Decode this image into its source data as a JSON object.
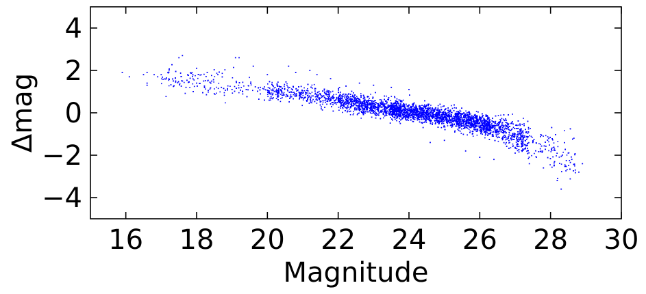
{
  "chart_data": {
    "type": "scatter",
    "title": "",
    "xlabel": "Magnitude",
    "ylabel": "Δmag",
    "xlim": [
      15,
      30
    ],
    "ylim": [
      -5,
      5
    ],
    "xticks": [
      16,
      18,
      20,
      22,
      24,
      26,
      28,
      30
    ],
    "xtick_labels": [
      "16",
      "18",
      "20",
      "22",
      "24",
      "26",
      "28",
      "30"
    ],
    "yticks": [
      4,
      2,
      0,
      -2,
      -4
    ],
    "ytick_labels": [
      "4",
      "2",
      "0",
      "−2",
      "−4"
    ],
    "grid": false,
    "legend": "none",
    "series": [
      {
        "color": "#0000ff",
        "marker": "dot",
        "trend": [
          {
            "x": 16.0,
            "y": 1.9
          },
          {
            "x": 17.0,
            "y": 1.7
          },
          {
            "x": 18.0,
            "y": 1.5
          },
          {
            "x": 19.0,
            "y": 1.3
          },
          {
            "x": 20.0,
            "y": 1.1
          },
          {
            "x": 21.0,
            "y": 0.9
          },
          {
            "x": 22.0,
            "y": 0.6
          },
          {
            "x": 23.0,
            "y": 0.3
          },
          {
            "x": 24.0,
            "y": 0.05
          },
          {
            "x": 25.0,
            "y": -0.2
          },
          {
            "x": 26.0,
            "y": -0.5
          },
          {
            "x": 27.0,
            "y": -1.0
          },
          {
            "x": 28.0,
            "y": -1.7
          },
          {
            "x": 28.9,
            "y": -2.5
          }
        ],
        "points": [
          {
            "x": 15.9,
            "y": 1.9
          },
          {
            "x": 16.1,
            "y": 1.7
          },
          {
            "x": 16.5,
            "y": 1.8
          },
          {
            "x": 16.6,
            "y": 1.9
          },
          {
            "x": 16.6,
            "y": 1.4
          },
          {
            "x": 16.6,
            "y": 1.3
          },
          {
            "x": 16.8,
            "y": 1.8
          },
          {
            "x": 16.9,
            "y": 1.7
          },
          {
            "x": 17.0,
            "y": 1.8
          },
          {
            "x": 17.1,
            "y": 1.6
          },
          {
            "x": 17.6,
            "y": 2.7
          },
          {
            "x": 17.5,
            "y": 2.6
          },
          {
            "x": 17.6,
            "y": 1.5
          },
          {
            "x": 17.7,
            "y": 1.2
          },
          {
            "x": 17.9,
            "y": 1.6
          },
          {
            "x": 18.0,
            "y": 2.1
          },
          {
            "x": 18.0,
            "y": 1.4
          },
          {
            "x": 18.2,
            "y": 1.5
          },
          {
            "x": 18.3,
            "y": 1.9
          },
          {
            "x": 18.4,
            "y": 1.4
          },
          {
            "x": 18.5,
            "y": 0.9
          },
          {
            "x": 18.6,
            "y": 1.8
          },
          {
            "x": 18.7,
            "y": 1.2
          },
          {
            "x": 19.0,
            "y": 1.1
          },
          {
            "x": 19.1,
            "y": 2.6
          },
          {
            "x": 19.2,
            "y": 2.6
          },
          {
            "x": 19.3,
            "y": 1.0
          },
          {
            "x": 19.6,
            "y": 2.2
          },
          {
            "x": 19.8,
            "y": 1.2
          },
          {
            "x": 20.0,
            "y": 1.8
          },
          {
            "x": 20.6,
            "y": 2.2
          },
          {
            "x": 20.8,
            "y": 1.9
          },
          {
            "x": 21.2,
            "y": 2.0
          },
          {
            "x": 21.4,
            "y": 1.8
          },
          {
            "x": 22.6,
            "y": 1.4
          },
          {
            "x": 23.0,
            "y": 1.3
          },
          {
            "x": 23.5,
            "y": 1.2
          },
          {
            "x": 24.0,
            "y": 1.1
          },
          {
            "x": 24.6,
            "y": -1.4
          },
          {
            "x": 25.0,
            "y": -1.3
          },
          {
            "x": 25.6,
            "y": -1.8
          },
          {
            "x": 26.0,
            "y": -2.1
          },
          {
            "x": 26.4,
            "y": -2.2
          },
          {
            "x": 27.0,
            "y": -1.9
          },
          {
            "x": 27.4,
            "y": -2.4
          },
          {
            "x": 27.8,
            "y": -2.6
          },
          {
            "x": 28.1,
            "y": -2.5
          },
          {
            "x": 28.2,
            "y": -3.1
          },
          {
            "x": 28.3,
            "y": -3.6
          },
          {
            "x": 28.5,
            "y": -1.9
          },
          {
            "x": 28.6,
            "y": -2.2
          },
          {
            "x": 28.7,
            "y": -2.7
          },
          {
            "x": 28.8,
            "y": -2.8
          },
          {
            "x": 28.9,
            "y": -2.4
          },
          {
            "x": 22.0,
            "y": 0.6
          },
          {
            "x": 22.5,
            "y": 0.5
          },
          {
            "x": 23.0,
            "y": 0.3
          },
          {
            "x": 23.5,
            "y": 0.2
          },
          {
            "x": 24.0,
            "y": 0.1
          },
          {
            "x": 24.5,
            "y": 0.0
          },
          {
            "x": 25.0,
            "y": -0.2
          },
          {
            "x": 25.5,
            "y": -0.3
          },
          {
            "x": 26.0,
            "y": -0.5
          },
          {
            "x": 26.5,
            "y": -0.8
          },
          {
            "x": 27.0,
            "y": -1.0
          },
          {
            "x": 27.5,
            "y": -1.4
          }
        ]
      }
    ]
  }
}
